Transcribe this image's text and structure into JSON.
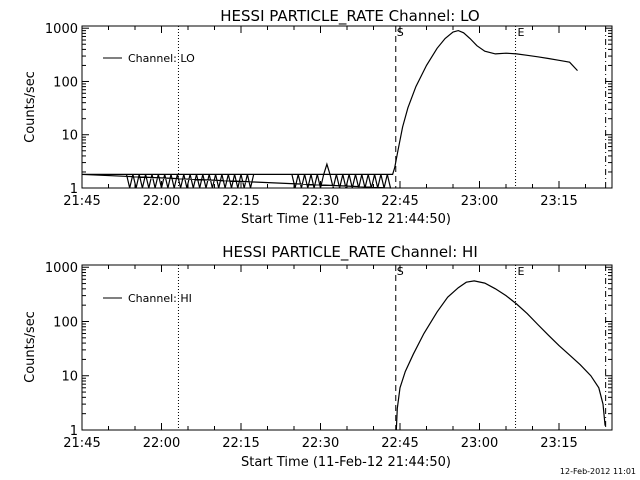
{
  "chart_data": [
    {
      "type": "line",
      "title": "HESSI PARTICLE_RATE Channel: LO",
      "xlabel": "Start Time (11-Feb-12 21:44:50)",
      "ylabel": "Counts/sec",
      "yscale": "log",
      "ylim": [
        1,
        1100
      ],
      "xlim_minutes": [
        0,
        100
      ],
      "x_tick_labels": [
        "21:45",
        "22:00",
        "22:15",
        "22:30",
        "22:45",
        "23:00",
        "23:15"
      ],
      "y_tick_labels": [
        "1",
        "10",
        "100",
        "1000"
      ],
      "legend": {
        "label": "Channel: LO",
        "placement": "upper-left"
      },
      "markers": {
        "start_label": "S",
        "end_label": "E"
      },
      "series": [
        {
          "name": "Channel: LO",
          "x": [
            0,
            58.3,
            58.6,
            59,
            59.6,
            60.5,
            61.5,
            63,
            65,
            67,
            68.5,
            70,
            71,
            72,
            73.2,
            74.5,
            76,
            78,
            80,
            82,
            84,
            86,
            88,
            90,
            92,
            93.5
          ],
          "y": [
            1.8,
            1.8,
            1.8,
            2.4,
            5,
            14,
            32,
            80,
            200,
            420,
            640,
            850,
            900,
            820,
            640,
            470,
            370,
            330,
            340,
            330,
            310,
            290,
            270,
            250,
            230,
            160
          ],
          "noise_floor": {
            "from": 0,
            "to": 58.3,
            "high": 1.8,
            "low": 1.0,
            "spike_x": 46.3,
            "spike_y": 2.8
          }
        }
      ],
      "vlines_minutes": {
        "dotted": [
          18.2,
          81.8
        ],
        "dashed": [
          59.2
        ],
        "dashdot": [
          98.8
        ]
      }
    },
    {
      "type": "line",
      "title": "HESSI PARTICLE_RATE Channel: HI",
      "xlabel": "Start Time (11-Feb-12 21:44:50)",
      "ylabel": "Counts/sec",
      "yscale": "log",
      "ylim": [
        1,
        1100
      ],
      "xlim_minutes": [
        0,
        100
      ],
      "x_tick_labels": [
        "21:45",
        "22:00",
        "22:15",
        "22:30",
        "22:45",
        "23:00",
        "23:15"
      ],
      "y_tick_labels": [
        "1",
        "10",
        "100",
        "1000"
      ],
      "legend": {
        "label": "Channel: HI",
        "placement": "upper-left"
      },
      "markers": {
        "start_label": "S",
        "end_label": "E"
      },
      "series": [
        {
          "name": "Channel: HI",
          "x": [
            59.3,
            59.5,
            60,
            61,
            62.5,
            64.5,
            67,
            69,
            71,
            72.5,
            74,
            76,
            78,
            80,
            82,
            84,
            86,
            88,
            90,
            92,
            94,
            96,
            97.5,
            98.3,
            98.7
          ],
          "y": [
            1.0,
            2.5,
            6,
            12,
            25,
            60,
            150,
            280,
            420,
            530,
            560,
            510,
            400,
            300,
            210,
            140,
            88,
            56,
            36,
            24,
            16,
            10,
            6,
            3,
            1.2
          ]
        }
      ],
      "vlines_minutes": {
        "dotted": [
          18.2,
          81.8
        ],
        "dashed": [
          59.2
        ],
        "dashdot": [
          98.8
        ]
      }
    }
  ],
  "footer": {
    "timestamp": "12-Feb-2012 11:01"
  }
}
